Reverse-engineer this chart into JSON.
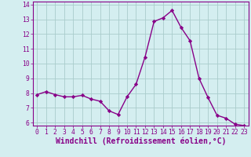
{
  "x": [
    0,
    1,
    2,
    3,
    4,
    5,
    6,
    7,
    8,
    9,
    10,
    11,
    12,
    13,
    14,
    15,
    16,
    17,
    18,
    19,
    20,
    21,
    22,
    23
  ],
  "y": [
    7.9,
    8.1,
    7.9,
    7.75,
    7.75,
    7.85,
    7.6,
    7.45,
    6.8,
    6.55,
    7.75,
    8.6,
    10.45,
    12.85,
    13.1,
    13.6,
    12.45,
    11.55,
    9.0,
    7.7,
    6.5,
    6.3,
    5.9,
    5.8
  ],
  "line_color": "#880088",
  "marker": "D",
  "marker_size": 2.2,
  "bg_color": "#d4eef0",
  "grid_color": "#aacccc",
  "xlabel": "Windchill (Refroidissement éolien,°C)",
  "ylabel": "",
  "title": "",
  "xlim_min": -0.5,
  "xlim_max": 23.5,
  "ylim_min": 5.8,
  "ylim_max": 14.2,
  "yticks": [
    6,
    7,
    8,
    9,
    10,
    11,
    12,
    13,
    14
  ],
  "xticks": [
    0,
    1,
    2,
    3,
    4,
    5,
    6,
    7,
    8,
    9,
    10,
    11,
    12,
    13,
    14,
    15,
    16,
    17,
    18,
    19,
    20,
    21,
    22,
    23
  ],
  "tick_fontsize": 5.8,
  "xlabel_fontsize": 7.0,
  "line_width": 1.0,
  "spine_color": "#880088",
  "axis_bg": "#d4eef0"
}
